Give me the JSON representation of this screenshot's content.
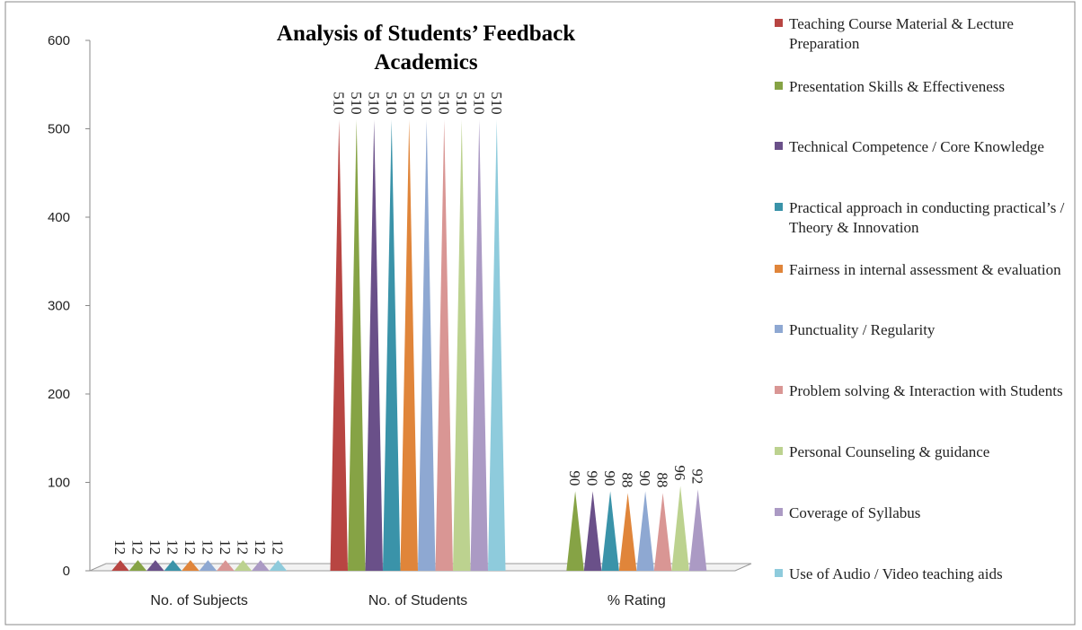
{
  "chart_data": {
    "type": "cone",
    "title": "Analysis of Students’ Feedback",
    "subtitle": "Academics",
    "categories": [
      "No. of Subjects",
      "No. of Students",
      "% Rating"
    ],
    "ylim": [
      0,
      600
    ],
    "yticks": [
      0,
      100,
      200,
      300,
      400,
      500,
      600
    ],
    "legend": "right",
    "series": [
      {
        "name": "Teaching Course Material & Lecture Preparation",
        "color": "#b84542",
        "values": [
          12,
          510,
          null
        ]
      },
      {
        "name": "Presentation Skills & Effectiveness",
        "color": "#86a345",
        "values": [
          12,
          510,
          90
        ]
      },
      {
        "name": "Technical Competence / Core Knowledge",
        "color": "#6a5089",
        "values": [
          12,
          510,
          90
        ]
      },
      {
        "name": "Practical approach in conducting practical’s / Theory & Innovation",
        "color": "#3a93a9",
        "values": [
          12,
          510,
          90
        ]
      },
      {
        "name": "Fairness in internal assessment & evaluation",
        "color": "#e0853a",
        "values": [
          12,
          510,
          88
        ]
      },
      {
        "name": "Punctuality / Regularity",
        "color": "#8ea8d2",
        "values": [
          12,
          510,
          90
        ]
      },
      {
        "name": "Problem solving & Interaction with Students",
        "color": "#d99694",
        "values": [
          12,
          510,
          88
        ]
      },
      {
        "name": "Personal Counseling & guidance",
        "color": "#bcd28f",
        "values": [
          12,
          510,
          96
        ]
      },
      {
        "name": "Coverage of Syllabus",
        "color": "#ab9ac4",
        "values": [
          12,
          510,
          92
        ]
      },
      {
        "name": "Use of Audio / Video teaching aids",
        "color": "#8ecbdc",
        "values": [
          12,
          510,
          null
        ]
      }
    ]
  }
}
